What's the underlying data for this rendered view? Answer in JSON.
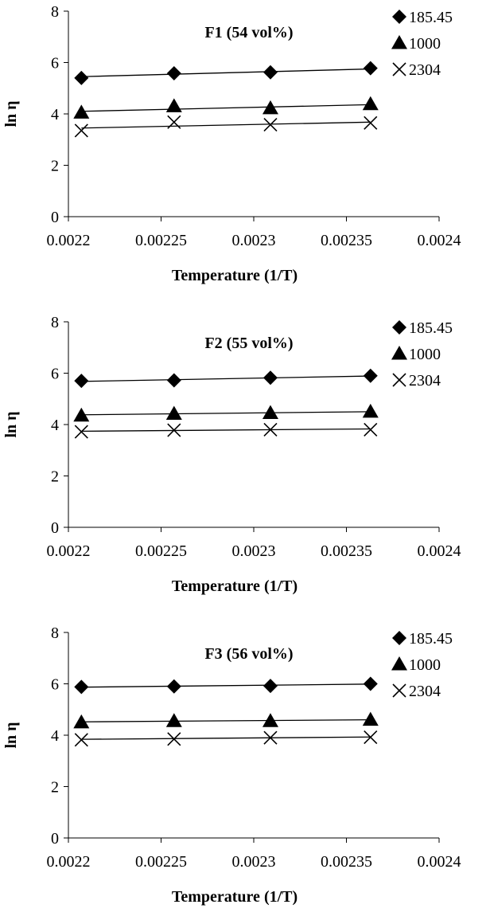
{
  "chart_data": [
    {
      "type": "scatter",
      "title": "F1 (54 vol%)",
      "xlabel": "Temperature (1/T)",
      "ylabel": "ln η",
      "xlim": [
        0.0022,
        0.0024
      ],
      "ylim": [
        0,
        8
      ],
      "x_ticks": [
        "0.0022",
        "0.00225",
        "0.0023",
        "0.00235",
        "0.0024"
      ],
      "y_ticks": [
        "0",
        "2",
        "4",
        "6",
        "8"
      ],
      "x": [
        0.002207,
        0.002257,
        0.002309,
        0.002363
      ],
      "series": [
        {
          "name": "185.45",
          "marker": "diamond",
          "values": [
            5.4,
            5.58,
            5.62,
            5.78
          ],
          "trend": [
            5.45,
            5.55,
            5.64,
            5.75
          ]
        },
        {
          "name": "1000",
          "marker": "triangle",
          "values": [
            4.05,
            4.3,
            4.22,
            4.38
          ],
          "trend": [
            4.1,
            4.18,
            4.26,
            4.36
          ]
        },
        {
          "name": "2304",
          "marker": "x",
          "values": [
            3.35,
            3.68,
            3.58,
            3.65
          ],
          "trend": [
            3.45,
            3.52,
            3.6,
            3.68
          ]
        }
      ],
      "legend_position": "right"
    },
    {
      "type": "scatter",
      "title": "F2 (55 vol%)",
      "xlabel": "Temperature (1/T)",
      "ylabel": "ln η",
      "xlim": [
        0.0022,
        0.0024
      ],
      "ylim": [
        0,
        8
      ],
      "x_ticks": [
        "0.0022",
        "0.00225",
        "0.0023",
        "0.00235",
        "0.0024"
      ],
      "y_ticks": [
        "0",
        "2",
        "4",
        "6",
        "8"
      ],
      "x": [
        0.002207,
        0.002257,
        0.002309,
        0.002363
      ],
      "series": [
        {
          "name": "185.45",
          "marker": "diamond",
          "values": [
            5.7,
            5.72,
            5.82,
            5.9
          ],
          "trend": [
            5.68,
            5.74,
            5.81,
            5.89
          ]
        },
        {
          "name": "1000",
          "marker": "triangle",
          "values": [
            4.35,
            4.42,
            4.45,
            4.5
          ],
          "trend": [
            4.38,
            4.42,
            4.46,
            4.5
          ]
        },
        {
          "name": "2304",
          "marker": "x",
          "values": [
            3.72,
            3.78,
            3.8,
            3.8
          ],
          "trend": [
            3.74,
            3.77,
            3.8,
            3.83
          ]
        }
      ],
      "legend_position": "right"
    },
    {
      "type": "scatter",
      "title": "F3 (56 vol%)",
      "xlabel": "Temperature (1/T)",
      "ylabel": "ln η",
      "xlim": [
        0.0022,
        0.0024
      ],
      "ylim": [
        0,
        8
      ],
      "x_ticks": [
        "0.0022",
        "0.00225",
        "0.0023",
        "0.00235",
        "0.0024"
      ],
      "y_ticks": [
        "0",
        "2",
        "4",
        "6",
        "8"
      ],
      "x": [
        0.002207,
        0.002257,
        0.002309,
        0.002363
      ],
      "series": [
        {
          "name": "185.45",
          "marker": "diamond",
          "values": [
            5.88,
            5.9,
            5.92,
            6.0
          ],
          "trend": [
            5.87,
            5.91,
            5.95,
            5.99
          ]
        },
        {
          "name": "1000",
          "marker": "triangle",
          "values": [
            4.5,
            4.55,
            4.55,
            4.6
          ],
          "trend": [
            4.52,
            4.54,
            4.57,
            4.6
          ]
        },
        {
          "name": "2304",
          "marker": "x",
          "values": [
            3.82,
            3.85,
            3.9,
            3.92
          ],
          "trend": [
            3.84,
            3.87,
            3.9,
            3.93
          ]
        }
      ],
      "legend_position": "right"
    }
  ]
}
